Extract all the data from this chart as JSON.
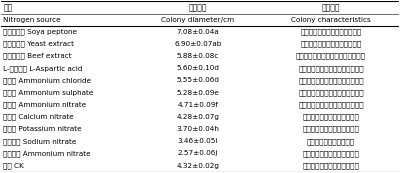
{
  "col_headers": [
    "氮源\nNitrogen source",
    "菌落直径\nColony diameter/cm",
    "菌落特征\nColony characteristics"
  ],
  "rows": [
    [
      "大豆蛋白胨 Soya peptone",
      "7.08±0.04a",
      "菌落白色，菌丝较浓密，上黄白"
    ],
    [
      "酵母提取物 Yeast extract",
      "6.90±0.07ab",
      "菌落白色，菌丝较浓密，上黄白"
    ],
    [
      "牛肉提取物 Beef extract",
      "5.88±0.08c",
      "菌丝上白色，菌丝较浓密，边缘整齐"
    ],
    [
      "L-天冬氨酸 L-Aspartic acid",
      "5.60±0.10d",
      "菌落边缘整齐平铺平整，边缘整齐"
    ],
    [
      "氯化铵 Ammonium chloride",
      "5.55±0.06d",
      "菌落边缘整齐平铺平整，边缘整齐"
    ],
    [
      "硫酸铵 Ammonium sulphate",
      "5.28±0.09e",
      "菌落边缘整齐平铺平整，边缘整齐"
    ],
    [
      "硝酸铵 Ammonium nitrate",
      "4.71±0.09f",
      "菌丝边缘整齐平铺平整，边缘整齐"
    ],
    [
      "硝酸钙 Calcium nitrate",
      "4.28±0.07g",
      "菌落边缘整齐平铺，长势良好"
    ],
    [
      "硝酸钾 Potassium nitrate",
      "3.70±0.04h",
      "菌落边缘整齐平铺，长势良好"
    ],
    [
      "亚硝酸钠 Sodium nitrate",
      "3.46±0.05i",
      "菌落边缘整齐，长势一般"
    ],
    [
      "亚硝酸铵 Ammonium nitrate",
      "2.57±0.06j",
      "菌落边缘整齐平铺，长势良好"
    ],
    [
      "空白 CK",
      "4.32±0.02g",
      "菌丝白色平铺平整，边缘整齐"
    ]
  ],
  "bg_color": "#ffffff",
  "header_line_color": "#000000",
  "font_size": 5.2,
  "header_font_size": 5.5
}
